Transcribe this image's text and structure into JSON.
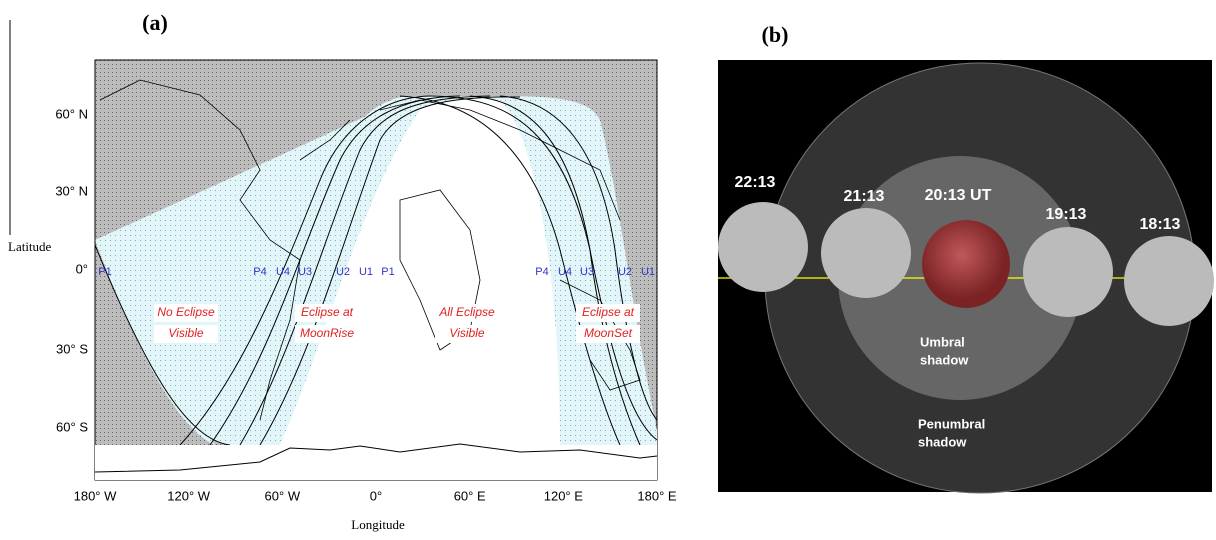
{
  "panel_a": {
    "label": "(a)",
    "y_axis_label": "Latitude",
    "x_axis_label": "Longitude",
    "lat_labels": [
      "60° N",
      "30° N",
      "0°",
      "30° S",
      "60° S"
    ],
    "lon_labels": [
      "180° W",
      "120° W",
      "60° W",
      "0°",
      "60° E",
      "120° E",
      "180° E"
    ],
    "contact_labels": [
      "P1",
      "P4",
      "U4",
      "U3",
      "U2",
      "U1",
      "P1",
      "P4",
      "U4",
      "U3",
      "U2",
      "U1"
    ],
    "region_labels": [
      [
        "No Eclipse",
        "Visible"
      ],
      [
        "Eclipse at",
        "MoonRise"
      ],
      [
        "All Eclipse",
        "Visible"
      ],
      [
        "Eclipse at",
        "MoonSet"
      ]
    ]
  },
  "panel_b": {
    "label": "(b)",
    "times": [
      "22:13",
      "21:13",
      "20:13 UT",
      "19:13",
      "18:13"
    ],
    "umbral_label": [
      "Umbral",
      "shadow"
    ],
    "penumbral_label": [
      "Penumbral",
      "shadow"
    ]
  }
}
